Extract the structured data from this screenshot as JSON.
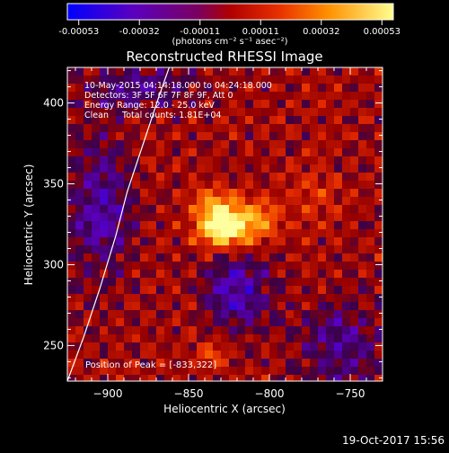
{
  "chart_data": {
    "type": "heatmap",
    "title": "Reconstructed RHESSI Image",
    "xlabel": "Heliocentric X (arcsec)",
    "ylabel": "Heliocentric Y (arcsec)",
    "xlim": [
      -925,
      -730
    ],
    "ylim": [
      228,
      422
    ],
    "x_ticks": [
      -900,
      -850,
      -800,
      -750
    ],
    "y_ticks": [
      250,
      300,
      350,
      400
    ],
    "colorbar": {
      "ticks": [
        "-0.00053",
        "-0.00032",
        "-0.00011",
        "0.00011",
        "0.00032",
        "0.00053"
      ],
      "units_label": "(photons cm⁻² s⁻¹ asec⁻²)",
      "range": [
        -0.00053,
        0.00053
      ],
      "colors": [
        "#0000ff",
        "#6a00c8",
        "#a00000",
        "#e03000",
        "#ff8c00",
        "#ffff80"
      ]
    },
    "annotations": [
      "10-May-2015 04:14:18.000 to 04:24:18.000",
      "Detectors: 3F 5F 6F 7F 8F 9F, Att 0",
      "Energy Range: 12.0 - 25.0 keV",
      "Clean     Total counts: 1.81E+04"
    ],
    "peak_label": "Position of Peak = [-833,322]",
    "peak": {
      "x": -833,
      "y": 322
    },
    "sources": [
      {
        "x": -831,
        "y": 322,
        "sx": 10,
        "sy": 9,
        "amp": 1.0
      },
      {
        "x": -812,
        "y": 326,
        "sx": 12,
        "sy": 9,
        "amp": 0.72
      },
      {
        "x": -835,
        "y": 338,
        "sx": 9,
        "sy": 7,
        "amp": 0.45
      },
      {
        "x": -834,
        "y": 245,
        "sx": 6,
        "sy": 6,
        "amp": 0.35
      },
      {
        "x": -772,
        "y": 345,
        "sx": 10,
        "sy": 12,
        "amp": 0.2
      }
    ],
    "limb_curve": [
      [
        -925,
        228
      ],
      [
        -915,
        255
      ],
      [
        -905,
        285
      ],
      [
        -895,
        318
      ],
      [
        -888,
        345
      ],
      [
        -878,
        375
      ],
      [
        -868,
        405
      ],
      [
        -862,
        422
      ]
    ]
  },
  "footer_date": "19-Oct-2017 15:56"
}
